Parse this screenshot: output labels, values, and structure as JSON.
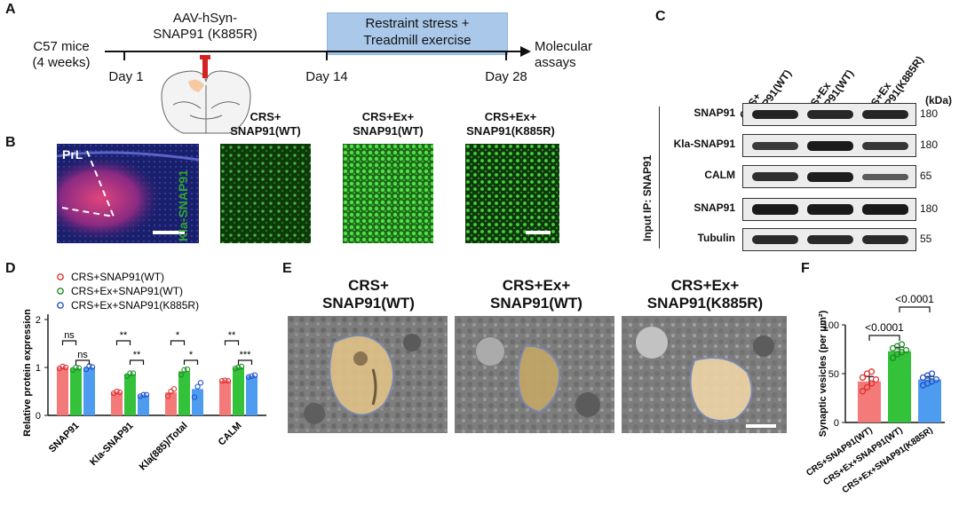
{
  "panels": {
    "A": {
      "label": "A",
      "mice": "C57 mice\n(4 weeks)",
      "virus": "AAV-hSyn-\nSNAP91 (K885R)",
      "stress": "Restraint stress +\nTreadmill exercise",
      "day1": "Day 1",
      "day14": "Day 14",
      "day28": "Day 28",
      "assays": "Molecular\nassays"
    },
    "B": {
      "label": "B",
      "region": "PrL",
      "stain_label": "Kla-SNAP91",
      "images": [
        {
          "title": "CRS+\nSNAP91(WT)"
        },
        {
          "title": "CRS+Ex+\nSNAP91(WT)"
        },
        {
          "title": "CRS+Ex+\nSNAP91(K885R)"
        }
      ]
    },
    "C": {
      "label": "C",
      "columns": [
        "CRS+\nSNAP91(WT)",
        "CRS+Ex\nSNAP91(WT)",
        "CRS+Ex\nSNAP91(K885R)"
      ],
      "kda_header": "(kDa)",
      "ip_label": "IP: SNAP91",
      "input_label": "Input",
      "rows": [
        {
          "name": "SNAP91",
          "kda": "180"
        },
        {
          "name": "Kla-SNAP91",
          "kda": "180"
        },
        {
          "name": "CALM",
          "kda": "65"
        },
        {
          "name": "SNAP91",
          "kda": "180"
        },
        {
          "name": "Tubulin",
          "kda": "55"
        }
      ]
    },
    "D": {
      "label": "D"
    },
    "E": {
      "label": "E",
      "images": [
        {
          "title": "CRS+\nSNAP91(WT)"
        },
        {
          "title": "CRS+Ex+\nSNAP91(WT)"
        },
        {
          "title": "CRS+Ex+\nSNAP91(K885R)"
        }
      ]
    },
    "F": {
      "label": "F"
    }
  },
  "colors": {
    "wt": "#f47a7a",
    "ex": "#33c23a",
    "k885r": "#4d9cf0",
    "wt_dot": "#e03131",
    "ex_dot": "#1e8e24",
    "k885r_dot": "#2452c8"
  },
  "chart_data": [
    {
      "type": "bar",
      "panel": "D",
      "ylabel": "Relative protein expression",
      "ylim": [
        0,
        2
      ],
      "yticks": [
        "0",
        "1",
        "2"
      ],
      "categories": [
        "SNAP91",
        "Kla-SNAP91",
        "Kla(885)/Total",
        "CALM"
      ],
      "series": [
        {
          "name": "CRS+SNAP91(WT)",
          "values": [
            1.0,
            0.48,
            0.48,
            0.72
          ]
        },
        {
          "name": "CRS+Ex+SNAP91(WT)",
          "values": [
            0.98,
            0.86,
            0.92,
            1.0
          ]
        },
        {
          "name": "CRS+Ex+SNAP91(K885R)",
          "values": [
            1.0,
            0.42,
            0.55,
            0.82
          ]
        }
      ],
      "points": [
        [
          [
            0.98,
            1.02,
            1.0
          ],
          [
            0.95,
            1.0,
            0.99
          ],
          [
            0.96,
            1.03,
            1.01
          ]
        ],
        [
          [
            0.46,
            0.5,
            0.48
          ],
          [
            0.82,
            0.88,
            0.88
          ],
          [
            0.4,
            0.43,
            0.43
          ]
        ],
        [
          [
            0.4,
            0.5,
            0.55
          ],
          [
            0.85,
            0.95,
            0.96
          ],
          [
            0.38,
            0.6,
            0.68
          ]
        ],
        [
          [
            0.72,
            0.73,
            0.72
          ],
          [
            0.98,
            1.0,
            1.02
          ],
          [
            0.8,
            0.82,
            0.84
          ]
        ]
      ],
      "significance": [
        [
          [
            "ns",
            0,
            1
          ],
          [
            "ns",
            1,
            2
          ]
        ],
        [
          [
            "**",
            0,
            1
          ],
          [
            "**",
            1,
            2
          ]
        ],
        [
          [
            "*",
            0,
            1
          ],
          [
            "*",
            1,
            2
          ]
        ],
        [
          [
            "**",
            0,
            1
          ],
          [
            "***",
            1,
            2
          ]
        ]
      ]
    },
    {
      "type": "bar",
      "panel": "F",
      "ylabel": "Synaptic vesicles (per μm²)",
      "ylim": [
        0,
        100
      ],
      "yticks": [
        "0",
        "50",
        "100"
      ],
      "categories": [
        "CRS+SNAP91(WT)",
        "CRS+Ex+SNAP91(WT)",
        "CRS+Ex+SNAP91(K885R)"
      ],
      "values": [
        42,
        73,
        44
      ],
      "errors": [
        5,
        4,
        3
      ],
      "points": [
        [
          32,
          36,
          40,
          44,
          46,
          50,
          52
        ],
        [
          66,
          70,
          72,
          74,
          76,
          78,
          80
        ],
        [
          38,
          40,
          42,
          44,
          46,
          48,
          50
        ]
      ],
      "comparisons": [
        {
          "label": "<0.0001",
          "from": 0,
          "to": 1
        },
        {
          "label": "<0.0001",
          "from": 1,
          "to": 2
        }
      ]
    }
  ]
}
